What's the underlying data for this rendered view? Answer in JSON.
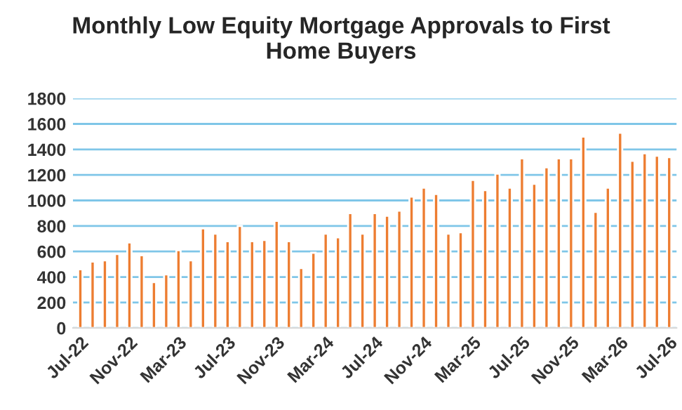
{
  "chart_data": {
    "type": "bar",
    "title": "Monthly Low Equity Mortgage Approvals to First\nHome Buyers",
    "categories": [
      "Jul-22",
      null,
      null,
      null,
      "Nov-22",
      null,
      null,
      null,
      "Mar-23",
      null,
      null,
      null,
      "Jul-23",
      null,
      null,
      null,
      "Nov-23",
      null,
      null,
      null,
      "Mar-24",
      null,
      null,
      null,
      "Jul-24",
      null,
      null,
      null,
      "Nov-24",
      null,
      null,
      null,
      "Mar-25",
      null,
      null,
      null,
      "Jul-25",
      null,
      null,
      null,
      "Nov-25",
      null,
      null,
      null,
      "Mar-26",
      null,
      null,
      null,
      "Jul-26"
    ],
    "values": [
      460,
      520,
      530,
      580,
      670,
      570,
      360,
      420,
      610,
      530,
      780,
      740,
      680,
      800,
      680,
      690,
      840,
      680,
      470,
      590,
      740,
      710,
      900,
      740,
      900,
      880,
      920,
      1030,
      1100,
      1050,
      740,
      750,
      1160,
      1080,
      1210,
      1100,
      1330,
      1130,
      1260,
      1330,
      1330,
      1500,
      910,
      1100,
      1530,
      1310,
      1370,
      1350,
      1340
    ],
    "color": "#ed7d31",
    "ylim": [
      0,
      1800
    ],
    "yticks": [
      0,
      200,
      400,
      600,
      800,
      1000,
      1200,
      1400,
      1600,
      1800
    ],
    "grid": "y"
  }
}
